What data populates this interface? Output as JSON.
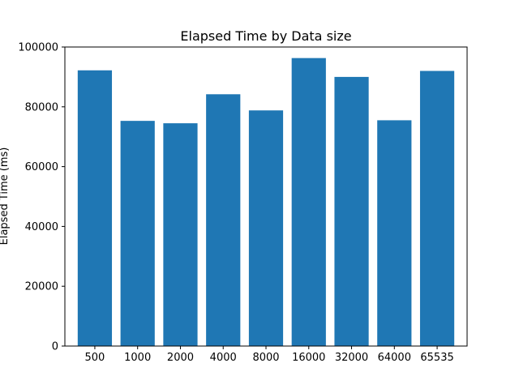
{
  "chart_data": {
    "type": "bar",
    "title": "Elapsed Time by Data size",
    "xlabel": "",
    "ylabel": "Elapsed Time (ms)",
    "categories": [
      "500",
      "1000",
      "2000",
      "4000",
      "8000",
      "16000",
      "32000",
      "64000",
      "65535"
    ],
    "values": [
      92200,
      75300,
      74500,
      84200,
      78800,
      96300,
      90000,
      75500,
      92000
    ],
    "ylim": [
      0,
      100000
    ],
    "yticks": [
      0,
      20000,
      40000,
      60000,
      80000,
      100000
    ],
    "grid": false,
    "legend": "none",
    "bar_color": "#1f77b4"
  }
}
